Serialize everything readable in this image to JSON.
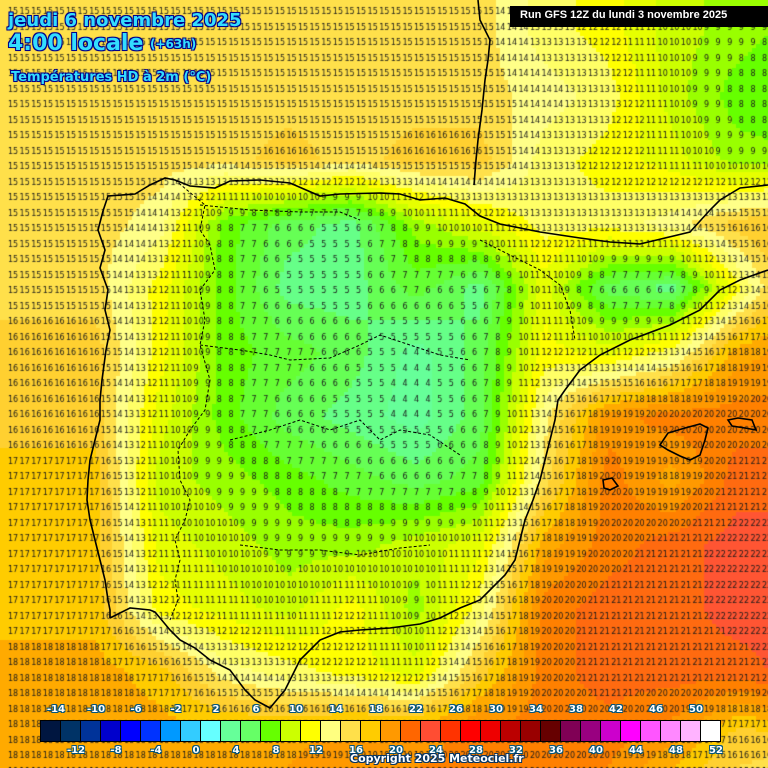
{
  "header": {
    "date": "jeudi 6 novembre 2025",
    "time": "4:00 locale",
    "offset": "(+63h)",
    "variable": "Températures HD à 2m (°C)",
    "run": "Run GFS 12Z du lundi 3 novembre 2025"
  },
  "footer": {
    "copyright": "Copyright 2025 Meteociel.fr"
  },
  "scale": {
    "top_labels": [
      "-14",
      "-10",
      "-6",
      "-2",
      "2",
      "6",
      "10",
      "14",
      "18",
      "22",
      "26",
      "30",
      "34",
      "38",
      "42",
      "46",
      "50"
    ],
    "bottom_labels": [
      "-12",
      "-8",
      "-4",
      "0",
      "4",
      "8",
      "12",
      "16",
      "20",
      "24",
      "28",
      "32",
      "36",
      "40",
      "44",
      "48",
      "52"
    ],
    "colors": [
      "#001640",
      "#003366",
      "#003399",
      "#0000cc",
      "#0000ff",
      "#0033ff",
      "#0099ff",
      "#33ccff",
      "#66ffff",
      "#66ff99",
      "#66ff66",
      "#66ff00",
      "#ccff00",
      "#ffff00",
      "#ffff80",
      "#ffe04a",
      "#ffcc00",
      "#ff9900",
      "#ff6600",
      "#ff4d33",
      "#ff3300",
      "#ff0000",
      "#ee0000",
      "#bb0000",
      "#990000",
      "#660000",
      "#800055",
      "#990080",
      "#cc00cc",
      "#ff00ff",
      "#ff55ff",
      "#ff88ff",
      "#ffb3ff",
      "#ffffff"
    ],
    "start_value": -14,
    "step": 2
  },
  "map": {
    "grid_origin": [
      8,
      8
    ],
    "grid_step": [
      11.6,
      15.5
    ],
    "field_cols": 13,
    "field_rows": 13,
    "field_cell": 64,
    "temperature_field": [
      [
        15,
        15,
        15,
        15,
        15,
        15,
        15,
        15,
        13,
        12,
        10,
        9,
        8
      ],
      [
        15,
        15,
        15,
        15,
        15,
        15,
        15,
        15,
        14,
        13,
        10,
        8,
        7
      ],
      [
        15,
        15,
        15,
        15,
        16,
        15,
        16,
        16,
        13,
        12,
        11,
        9,
        9
      ],
      [
        15,
        15,
        14,
        8,
        6,
        5,
        9,
        11,
        13,
        13,
        14,
        16,
        17
      ],
      [
        15,
        15,
        12,
        8,
        5,
        5,
        7,
        5,
        11,
        6,
        5,
        12,
        18
      ],
      [
        16,
        16,
        12,
        8,
        7,
        6,
        4,
        6,
        12,
        11,
        13,
        18,
        19
      ],
      [
        16,
        16,
        11,
        8,
        6,
        5,
        4,
        6,
        14,
        19,
        20,
        20,
        20
      ],
      [
        17,
        17,
        10,
        9,
        8,
        7,
        6,
        7,
        15,
        20,
        18,
        21,
        21
      ],
      [
        17,
        17,
        11,
        10,
        9,
        9,
        10,
        11,
        18,
        20,
        21,
        22,
        22
      ],
      [
        17,
        17,
        12,
        11,
        10,
        12,
        9,
        13,
        20,
        21,
        21,
        22,
        22
      ],
      [
        18,
        18,
        17,
        14,
        13,
        12,
        11,
        16,
        20,
        21,
        21,
        21,
        22
      ],
      [
        18,
        18,
        18,
        18,
        18,
        19,
        19,
        20,
        20,
        20,
        19,
        16,
        16
      ],
      [
        19,
        19,
        19,
        19,
        19,
        20,
        20,
        20,
        19,
        19,
        16,
        15,
        14
      ]
    ],
    "coastlines": [
      "M 300,0 L 300,0",
      "M 103,211 L 108,196 L 135,194 L 150,185 L 165,178 L 175,180 L 190,186 L 215,188 L 230,181 L 260,180 L 290,183 L 320,196 L 340,194 L 380,193 L 400,194 L 420,200 L 445,198 L 465,204 L 480,216 L 500,224 L 540,232 L 580,238 L 610,242 L 640,244 L 690,232 L 710,210 L 720,200 L 740,188 L 768,185",
      "M 103,211 L 98,230 L 105,250 L 100,268 L 108,290 L 105,310 L 110,330 L 106,350 L 102,380 L 100,400 L 100,420 L 95,440 L 90,460 L 88,480 L 87,500 L 90,520 L 95,540 L 100,560 L 105,580 L 108,600 L 110,610 L 110,618",
      "M 110,618 L 130,608 L 150,610 L 155,612 L 170,630 L 180,640 L 195,648 L 210,660 L 230,670 L 245,690 L 255,700 L 270,708 L 285,690 L 300,660 L 320,640 L 340,632 L 360,630 L 390,628 L 420,624 L 440,618 L 460,608 L 480,600 L 490,590 L 505,575 L 515,560 L 520,540 L 525,520 L 533,500 L 540,480 L 545,460 L 550,440 L 555,420 L 558,400 L 565,390 L 580,370 L 600,355 L 630,340 L 670,325 L 700,310 L 720,290 L 740,280 L 768,270",
      "M 660,445 L 668,433 L 685,428 L 700,424 L 708,428 L 705,440 L 700,455 L 690,460 L 680,456 L 668,450 Z",
      "M 728,420 L 738,418 L 752,420 L 756,430 L 745,428 L 732,426 Z",
      "M 603,480 L 612,478 L 618,486 L 610,490 L 604,488 Z",
      "M 478,0 L 480,20 L 490,40 L 488,60 L 485,80 L 482,110 L 478,140 L 476,160 L 474,185"
    ],
    "borders": [
      "M 175,180 L 205,205 L 200,230 L 210,245 L 215,270 L 200,290 L 205,320 L 200,345 L 210,380 L 205,410 L 190,430 L 178,450 L 180,480 L 190,500 L 185,520 L 175,540 L 180,560 L 175,580 L 178,600 L 170,620",
      "M 200,205 L 250,210 L 300,212 L 340,212 L 360,220",
      "M 200,345 L 240,350 L 270,355 L 290,360 L 330,358 L 360,345 L 380,335 L 410,345 L 440,355 L 470,360",
      "M 230,440 L 270,430 L 300,420 L 330,430 L 360,420 L 380,440 L 400,430 L 430,435 L 460,455",
      "M 240,545 L 280,550 L 320,550 L 360,555 L 400,548 L 430,545",
      "M 480,240 L 500,250 L 520,260 L 540,270 L 560,285 L 570,310 L 575,340"
    ]
  }
}
